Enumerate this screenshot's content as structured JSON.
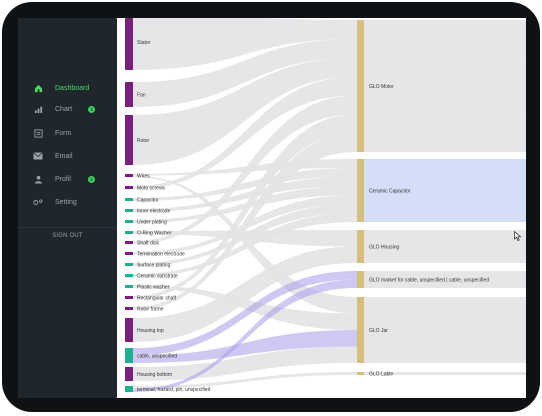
{
  "sidebar": {
    "items": [
      {
        "label": "Dashboard",
        "icon": "home-icon",
        "active": true,
        "badge": ""
      },
      {
        "label": "Chart",
        "icon": "bar-chart-icon",
        "active": false,
        "badge": "2"
      },
      {
        "label": "Form",
        "icon": "form-icon",
        "active": false,
        "badge": ""
      },
      {
        "label": "Email",
        "icon": "email-icon",
        "active": false,
        "badge": ""
      },
      {
        "label": "Profil",
        "icon": "user-icon",
        "active": false,
        "badge": "2"
      },
      {
        "label": "Setting",
        "icon": "settings-icon",
        "active": false,
        "badge": ""
      }
    ],
    "signout_label": "SIGN OUT"
  },
  "colors": {
    "sidebar_bg": "#1f262c",
    "active": "#4cd964",
    "badge": "#3ccf5c",
    "source_node": "#7b1f7e",
    "teal_node": "#1fae8f",
    "target_node": "#d6bf7a",
    "link": "#e3e3e6",
    "link_purple": "#a99be8",
    "highlight": "#d4def7"
  },
  "chart_data": {
    "type": "sankey",
    "sources": [
      "Stator",
      "Fan",
      "Rotor",
      "Wires",
      "Moto screws",
      "Capacitor",
      "Inner electrode",
      "Under plating",
      "O-Ring Washer",
      "Shaft disk",
      "Termination electrode",
      "Surface plating",
      "Ceramic substrate",
      "Plastic washer",
      "Rectangular shaft",
      "Rotor frame",
      "Housing top",
      "cable, unspecified",
      "Housing bottom",
      "terminal, hazard, pin, unspecified"
    ],
    "targets": [
      "GLO Motor",
      "Ceramic Capacitor",
      "GLO Housing",
      "GLO market for cable, unspecified | cable, unspecified",
      "GLO Jar",
      "GLO Lable"
    ],
    "highlighted_target": "Ceramic Capacitor"
  }
}
